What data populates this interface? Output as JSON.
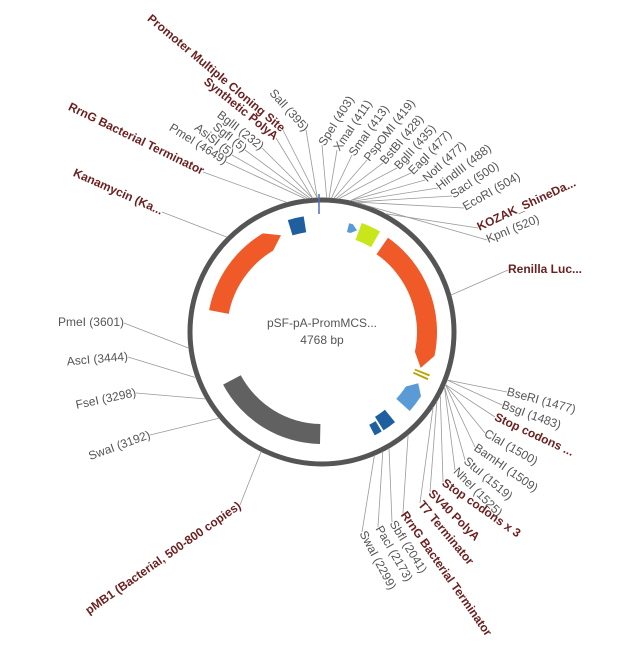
{
  "map": {
    "name": "pSF-pA-PromMCS...",
    "size": "4768 bp"
  },
  "features": [
    "Promoter Multiple Cloning Site",
    "Synthetic PolyA",
    "RrnG Bacterial Terminator",
    "Kanamycin (Ka...",
    "KOZAK_ShineDa...",
    "Renilla Luc...",
    "Stop codons ...",
    "Stop codons x 3",
    "SV40 PolyA",
    "T7 Terminator",
    "RrnG Bacterial Terminator",
    "pMB1 (Bacterial, 500-800 copies)"
  ],
  "sites": [
    "SalI (395)",
    "BglII (232)",
    "SgfI (5)",
    "AsiSI (5)",
    "PmeI (4649)",
    "SpeI (403)",
    "XmaI (411)",
    "SmaI (413)",
    "PspOMI (419)",
    "BstBI (428)",
    "BglII (435)",
    "EagI (477)",
    "NotI (477)",
    "HindIII (488)",
    "SacI (500)",
    "EcoRI (504)",
    "KpnI (520)",
    "BseRI (1477)",
    "BsgI (1483)",
    "ClaI (1500)",
    "BamHI (1509)",
    "StuI (1519)",
    "NheI (1525)",
    "SbfI (2041)",
    "PacI (2173)",
    "SwaI (2299)",
    "PmeI (3601)",
    "AscI (3444)",
    "FseI (3298)",
    "SwaI (3192)"
  ]
}
